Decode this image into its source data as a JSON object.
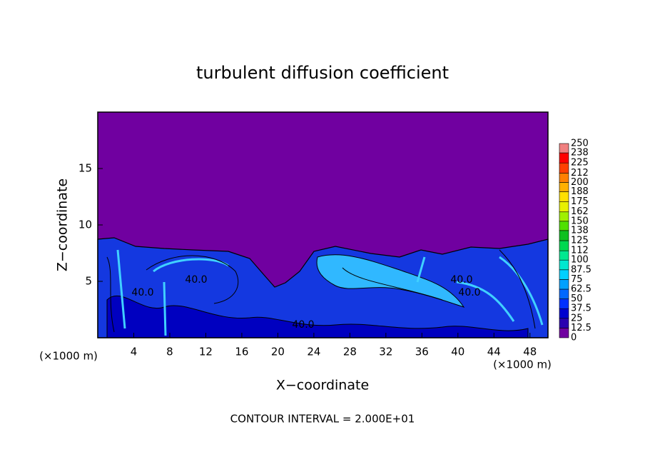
{
  "chart_data": {
    "type": "contour",
    "title": "turbulent diffusion coefficient",
    "xlabel": "X−coordinate",
    "ylabel": "Z−coordinate",
    "unit_label": "(×1000 m)",
    "footnote": "CONTOUR INTERVAL = 2.000E+01",
    "xlim": [
      0,
      50
    ],
    "xticks": [
      4,
      8,
      12,
      16,
      20,
      24,
      28,
      32,
      36,
      40,
      44,
      48
    ],
    "ylim": [
      0,
      20
    ],
    "yticks": [
      5,
      10,
      15
    ],
    "colorbar": {
      "levels": [
        0,
        12.5,
        25,
        37.5,
        50,
        62.5,
        75,
        87.5,
        100,
        112,
        125,
        138,
        150,
        162,
        175,
        188,
        200,
        212,
        225,
        238,
        250
      ],
      "colors": [
        "#7000a0",
        "#2a00b0",
        "#0000d0",
        "#0030ff",
        "#0068ff",
        "#00a0ff",
        "#00d0ff",
        "#00e8d0",
        "#00e890",
        "#00d850",
        "#10c020",
        "#50e000",
        "#a0f000",
        "#e8f000",
        "#ffe000",
        "#ffb000",
        "#ff8000",
        "#ff4000",
        "#ff0000",
        "#f08080"
      ]
    },
    "contour_labels": [
      "40.0",
      "40.0",
      "40.0",
      "40.0",
      "40.0"
    ]
  }
}
